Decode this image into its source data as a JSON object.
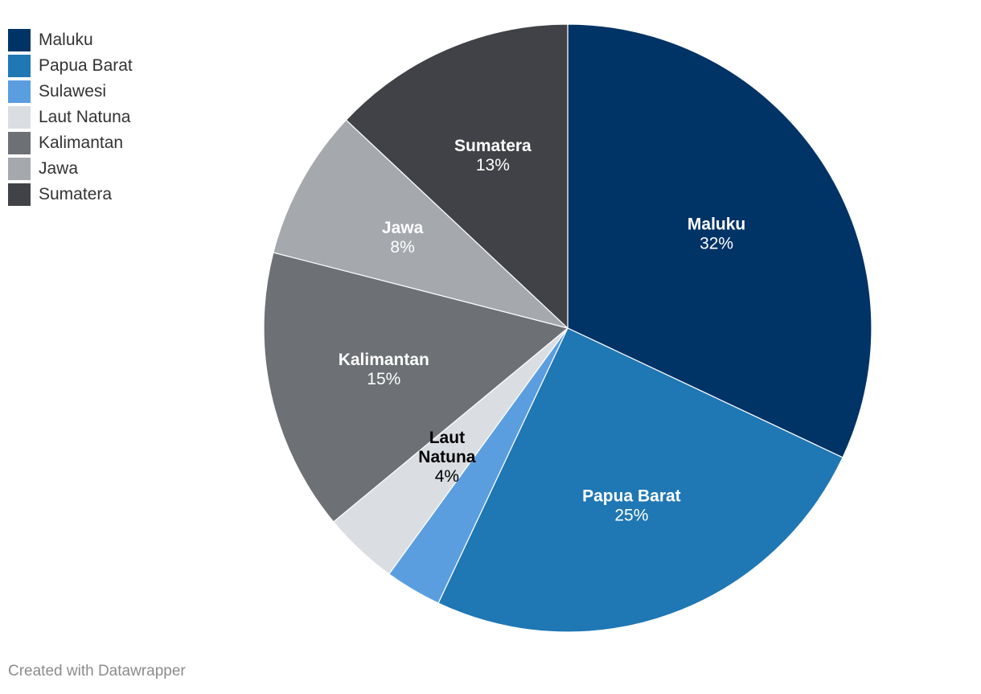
{
  "chart_data": {
    "type": "pie",
    "categories": [
      "Maluku",
      "Papua Barat",
      "Sulawesi",
      "Laut Natuna",
      "Kalimantan",
      "Jawa",
      "Sumatera"
    ],
    "values": [
      32,
      25,
      3,
      4,
      15,
      8,
      13
    ],
    "data_labels": [
      "32%",
      "25%",
      "",
      "4%",
      "15%",
      "8%",
      "13%"
    ],
    "colors": [
      "#003366",
      "#1f77b4",
      "#5b9ee0",
      "#dadde2",
      "#6d7075",
      "#a5a8ad",
      "#404247"
    ],
    "label_colors": [
      "#ffffff",
      "#ffffff",
      "#ffffff",
      "#000000",
      "#ffffff",
      "#ffffff",
      "#ffffff"
    ],
    "start_angle_deg": 0,
    "direction": "clockwise",
    "legend_position": "top-left"
  },
  "footer": {
    "credit": "Created with Datawrapper"
  }
}
